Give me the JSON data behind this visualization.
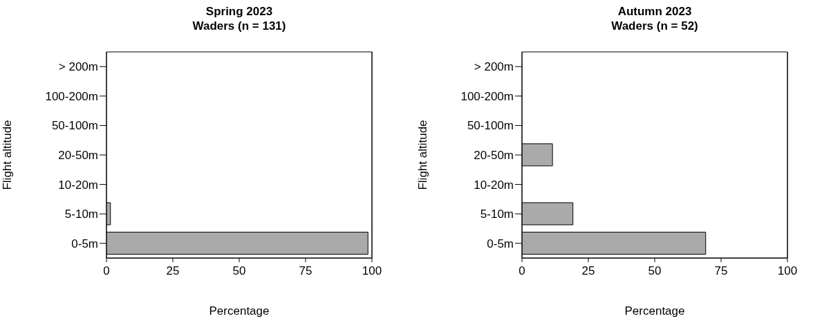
{
  "chart_data": [
    {
      "type": "bar",
      "orientation": "horizontal",
      "title": "Spring 2023",
      "subtitle": "Waders (n = 131)",
      "xlabel": "Percentage",
      "ylabel": "Flight altitude",
      "categories": [
        "> 200m",
        "100-200m",
        "50-100m",
        "20-50m",
        "10-20m",
        "5-10m",
        "0-5m"
      ],
      "values": [
        null,
        null,
        null,
        null,
        null,
        1.5,
        98.5
      ],
      "color": "#aaaaaa",
      "xlim": [
        0,
        100
      ],
      "xticks": [
        0,
        25,
        50,
        75,
        100
      ]
    },
    {
      "type": "bar",
      "orientation": "horizontal",
      "title": "Autumn 2023",
      "subtitle": "Waders (n = 52)",
      "xlabel": "Percentage",
      "ylabel": "Flight altitude",
      "categories": [
        "> 200m",
        "100-200m",
        "50-100m",
        "20-50m",
        "10-20m",
        "5-10m",
        "0-5m"
      ],
      "values": [
        null,
        null,
        null,
        11.5,
        null,
        19.2,
        69.2
      ],
      "color": "#aaaaaa",
      "xlim": [
        0,
        100
      ],
      "xticks": [
        0,
        25,
        50,
        75,
        100
      ]
    }
  ]
}
